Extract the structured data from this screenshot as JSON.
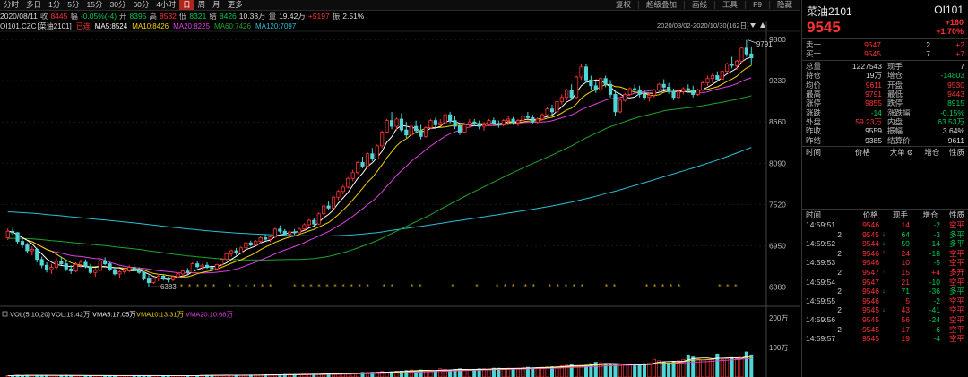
{
  "colors": {
    "up": "#ff3232",
    "down": "#00c853",
    "ma5": "#ffffff",
    "ma10": "#f5d400",
    "ma20": "#e040e0",
    "ma60": "#1fa32e",
    "ma120": "#2bbfd6",
    "vma5": "#ffffff",
    "vma10": "#f5d400",
    "vma20": "#e040e0"
  },
  "toolbar": {
    "periods": [
      "分时",
      "多日",
      "1分",
      "5分",
      "15分",
      "30分",
      "60分",
      "4小时",
      "日",
      "周",
      "月",
      "更多"
    ],
    "active": "日",
    "tools": [
      "复权",
      "超级叠加",
      "画线",
      "工具",
      "F9",
      "隐藏"
    ]
  },
  "quote": {
    "date": "2020/08/11",
    "close_label": "收",
    "close": "8445",
    "range_label": "幅",
    "range": "-0.05%(-4)",
    "open_label": "开",
    "open": "8395",
    "high_label": "高",
    "high": "8532",
    "low_label": "低",
    "low": "8321",
    "settle_label": "结",
    "settle": "8426",
    "amount": "10.38万",
    "vol_label": "量",
    "vol": "19.42万",
    "oi_chg": "+5197",
    "amp_label": "振",
    "amp": "2.51%"
  },
  "ma": {
    "symbol": "OI101.CZC",
    "name": "[菜油2101]",
    "rights": "已连",
    "ma5": "MA5:8524",
    "ma10": "MA10:8426",
    "ma20": "MA20:8225",
    "ma60": "MA60:7426",
    "ma120": "MA120:7097"
  },
  "range_label": "2020/03/02-2020/10/30(162日)",
  "price_axis": [
    "9800",
    "9230",
    "8660",
    "8090",
    "7520",
    "6950",
    "6380"
  ],
  "max_label": "9791",
  "min_label": "6383",
  "vol_legend": {
    "title": "VOL(5,10,20)",
    "vol": "VOL:19.42万",
    "vma5": "VMA5:17.05万",
    "vma10": "VMA10:13.31万",
    "vma20": "VMA20:10.68万"
  },
  "vol_axis": [
    "200万",
    "100万"
  ],
  "panel": {
    "name": "菜油2101",
    "code": "OI101",
    "price": "9545",
    "chg": "+160",
    "chg_pct": "+1.70%",
    "orderbook": [
      {
        "label": "卖一",
        "price": "9547",
        "vol": "2",
        "chg": "+2"
      },
      {
        "label": "买一",
        "price": "9545",
        "vol": "7",
        "chg": "+7"
      }
    ],
    "stats": [
      {
        "k1": "总量",
        "v1": "1227543",
        "c1": "w",
        "k2": "现手",
        "v2": "7",
        "c2": "w"
      },
      {
        "k1": "持仓",
        "v1": "19万",
        "c1": "w",
        "k2": "增仓",
        "v2": "-14803",
        "c2": "g"
      },
      {
        "k1": "均价",
        "v1": "9611",
        "c1": "r",
        "k2": "开盘",
        "v2": "9530",
        "c2": "r"
      },
      {
        "k1": "最高",
        "v1": "9791",
        "c1": "r",
        "k2": "最低",
        "v2": "9443",
        "c2": "r"
      },
      {
        "k1": "涨停",
        "v1": "9855",
        "c1": "r",
        "k2": "跌停",
        "v2": "8915",
        "c2": "g"
      },
      {
        "k1": "涨跌",
        "v1": "-14",
        "c1": "g",
        "k2": "涨跌幅",
        "v2": "-0.15%",
        "c2": "g"
      },
      {
        "k1": "外盘",
        "v1": "59.23万",
        "c1": "r",
        "k2": "内盘",
        "v2": "63.53万",
        "c2": "g"
      },
      {
        "k1": "昨收",
        "v1": "9559",
        "c1": "w",
        "k2": "振幅",
        "v2": "3.64%",
        "c2": "w"
      },
      {
        "k1": "昨结",
        "v1": "9385",
        "c1": "w",
        "k2": "结算价",
        "v2": "9611",
        "c2": "w"
      }
    ],
    "trade_head": [
      "时间",
      "价格",
      "大单",
      "增仓",
      "性质"
    ],
    "tick_head": [
      "时间",
      "价格",
      "现手",
      "增仓",
      "性质"
    ],
    "ticks": [
      {
        "t": "14:59:51",
        "p": "9546",
        "pc": "r",
        "a": "",
        "v": "14",
        "vc": "r",
        "oi": "-2",
        "n": "空平",
        "nc": "r"
      },
      {
        "t": "2",
        "p": "9545",
        "pc": "r",
        "a": "↓",
        "v": "64",
        "vc": "g",
        "oi": "-3",
        "n": "多平",
        "nc": "g"
      },
      {
        "t": "14:59:52",
        "p": "9544",
        "pc": "r",
        "a": "↓",
        "v": "59",
        "vc": "g",
        "oi": "-14",
        "n": "多平",
        "nc": "g"
      },
      {
        "t": "2",
        "p": "9546",
        "pc": "r",
        "a": "↑",
        "v": "24",
        "vc": "r",
        "oi": "-18",
        "n": "空平",
        "nc": "r"
      },
      {
        "t": "14:59:53",
        "p": "9546",
        "pc": "r",
        "a": "",
        "v": "10",
        "vc": "r",
        "oi": "-5",
        "n": "空平",
        "nc": "r"
      },
      {
        "t": "2",
        "p": "9547",
        "pc": "r",
        "a": "↑",
        "v": "15",
        "vc": "r",
        "oi": "+4",
        "n": "多开",
        "nc": "r"
      },
      {
        "t": "14:59:54",
        "p": "9547",
        "pc": "r",
        "a": "",
        "v": "21",
        "vc": "r",
        "oi": "-10",
        "n": "空平",
        "nc": "r"
      },
      {
        "t": "2",
        "p": "9546",
        "pc": "r",
        "a": "↓",
        "v": "71",
        "vc": "g",
        "oi": "-36",
        "n": "多平",
        "nc": "g"
      },
      {
        "t": "14:59:55",
        "p": "9546",
        "pc": "r",
        "a": "",
        "v": "5",
        "vc": "r",
        "oi": "-2",
        "n": "空平",
        "nc": "r"
      },
      {
        "t": "2",
        "p": "9545",
        "pc": "r",
        "a": "↓",
        "v": "43",
        "vc": "r",
        "oi": "-41",
        "n": "空平",
        "nc": "r"
      },
      {
        "t": "14:59:56",
        "p": "9545",
        "pc": "r",
        "a": "",
        "v": "56",
        "vc": "r",
        "oi": "-24",
        "n": "空平",
        "nc": "r"
      },
      {
        "t": "2",
        "p": "9545",
        "pc": "r",
        "a": "",
        "v": "17",
        "vc": "r",
        "oi": "-6",
        "n": "空平",
        "nc": "r"
      },
      {
        "t": "14:59:57",
        "p": "9545",
        "pc": "r",
        "a": "",
        "v": "19",
        "vc": "r",
        "oi": "-4",
        "n": "空平",
        "nc": "r"
      }
    ]
  },
  "chart_data": {
    "type": "candlestick",
    "title": "菜油2101 日K",
    "y_range": [
      6200,
      9900
    ],
    "vol_range_wan": [
      0,
      200
    ],
    "ticks": [
      "9800",
      "9230",
      "8660",
      "8090",
      "7520",
      "6950",
      "6380"
    ],
    "ohlc": [
      [
        7060,
        7190,
        7030,
        7150
      ],
      [
        7150,
        7200,
        7100,
        7130
      ],
      [
        7130,
        7140,
        6980,
        7010
      ],
      [
        7010,
        7060,
        6920,
        6960
      ],
      [
        6960,
        6990,
        6850,
        6880
      ],
      [
        6880,
        6940,
        6820,
        6900
      ],
      [
        6900,
        6920,
        6720,
        6760
      ],
      [
        6760,
        6800,
        6640,
        6680
      ],
      [
        6680,
        6720,
        6580,
        6620
      ],
      [
        6620,
        6700,
        6560,
        6650
      ],
      [
        6650,
        6780,
        6620,
        6740
      ],
      [
        6740,
        6800,
        6680,
        6700
      ],
      [
        6700,
        6760,
        6600,
        6630
      ],
      [
        6630,
        6680,
        6560,
        6600
      ],
      [
        6600,
        6720,
        6580,
        6690
      ],
      [
        6690,
        6760,
        6650,
        6720
      ],
      [
        6720,
        6760,
        6640,
        6660
      ],
      [
        6660,
        6700,
        6560,
        6580
      ],
      [
        6580,
        6640,
        6520,
        6610
      ],
      [
        6610,
        6760,
        6600,
        6740
      ],
      [
        6740,
        6790,
        6680,
        6700
      ],
      [
        6700,
        6720,
        6600,
        6620
      ],
      [
        6620,
        6660,
        6540,
        6560
      ],
      [
        6560,
        6620,
        6500,
        6590
      ],
      [
        6590,
        6640,
        6560,
        6610
      ],
      [
        6610,
        6680,
        6580,
        6650
      ],
      [
        6650,
        6690,
        6600,
        6620
      ],
      [
        6620,
        6650,
        6560,
        6580
      ],
      [
        6580,
        6600,
        6470,
        6490
      ],
      [
        6490,
        6540,
        6383,
        6440
      ],
      [
        6440,
        6520,
        6420,
        6500
      ],
      [
        6500,
        6560,
        6460,
        6530
      ],
      [
        6530,
        6560,
        6470,
        6490
      ],
      [
        6490,
        6520,
        6440,
        6480
      ],
      [
        6480,
        6540,
        6460,
        6520
      ],
      [
        6520,
        6580,
        6500,
        6560
      ],
      [
        6560,
        6620,
        6530,
        6600
      ],
      [
        6600,
        6640,
        6560,
        6580
      ],
      [
        6580,
        6720,
        6570,
        6700
      ],
      [
        6700,
        6740,
        6640,
        6660
      ],
      [
        6660,
        6700,
        6620,
        6680
      ],
      [
        6680,
        6720,
        6630,
        6650
      ],
      [
        6650,
        6680,
        6600,
        6630
      ],
      [
        6630,
        6700,
        6610,
        6690
      ],
      [
        6690,
        6780,
        6680,
        6760
      ],
      [
        6760,
        6860,
        6740,
        6840
      ],
      [
        6840,
        6900,
        6800,
        6880
      ],
      [
        6880,
        6920,
        6820,
        6850
      ],
      [
        6850,
        6940,
        6840,
        6920
      ],
      [
        6920,
        7010,
        6900,
        6990
      ],
      [
        6990,
        7020,
        6940,
        6960
      ],
      [
        6960,
        7030,
        6950,
        7010
      ],
      [
        7010,
        7080,
        6980,
        7060
      ],
      [
        7060,
        7110,
        7020,
        7040
      ],
      [
        7040,
        7090,
        7000,
        7070
      ],
      [
        7070,
        7200,
        7060,
        7180
      ],
      [
        7180,
        7230,
        7120,
        7150
      ],
      [
        7150,
        7180,
        7090,
        7110
      ],
      [
        7110,
        7160,
        7080,
        7140
      ],
      [
        7140,
        7180,
        7100,
        7130
      ],
      [
        7130,
        7200,
        7110,
        7180
      ],
      [
        7180,
        7260,
        7160,
        7240
      ],
      [
        7240,
        7320,
        7220,
        7300
      ],
      [
        7300,
        7340,
        7220,
        7250
      ],
      [
        7250,
        7410,
        7240,
        7390
      ],
      [
        7390,
        7520,
        7380,
        7500
      ],
      [
        7500,
        7560,
        7440,
        7470
      ],
      [
        7470,
        7640,
        7460,
        7620
      ],
      [
        7620,
        7720,
        7580,
        7700
      ],
      [
        7700,
        7790,
        7660,
        7760
      ],
      [
        7760,
        7900,
        7740,
        7880
      ],
      [
        7880,
        8000,
        7840,
        7960
      ],
      [
        7960,
        8120,
        7940,
        8100
      ],
      [
        8100,
        8180,
        8020,
        8050
      ],
      [
        8050,
        8240,
        8030,
        8220
      ],
      [
        8220,
        8300,
        8120,
        8150
      ],
      [
        8150,
        8350,
        8140,
        8330
      ],
      [
        8330,
        8540,
        8300,
        8520
      ],
      [
        8520,
        8700,
        8500,
        8680
      ],
      [
        8680,
        8800,
        8560,
        8600
      ],
      [
        8600,
        8720,
        8540,
        8700
      ],
      [
        8700,
        8780,
        8520,
        8550
      ],
      [
        8550,
        8660,
        8440,
        8480
      ],
      [
        8480,
        8620,
        8460,
        8600
      ],
      [
        8600,
        8680,
        8500,
        8540
      ],
      [
        8540,
        8620,
        8420,
        8460
      ],
      [
        8460,
        8600,
        8440,
        8580
      ],
      [
        8580,
        8700,
        8560,
        8680
      ],
      [
        8680,
        8720,
        8580,
        8620
      ],
      [
        8620,
        8700,
        8600,
        8650
      ],
      [
        8650,
        8780,
        8630,
        8760
      ],
      [
        8760,
        8800,
        8640,
        8680
      ],
      [
        8680,
        8740,
        8560,
        8600
      ],
      [
        8600,
        8640,
        8480,
        8520
      ],
      [
        8520,
        8640,
        8500,
        8620
      ],
      [
        8620,
        8700,
        8580,
        8660
      ],
      [
        8660,
        8700,
        8600,
        8640
      ],
      [
        8640,
        8680,
        8560,
        8600
      ],
      [
        8600,
        8660,
        8540,
        8620
      ],
      [
        8620,
        8700,
        8600,
        8680
      ],
      [
        8680,
        8720,
        8620,
        8640
      ],
      [
        8640,
        8680,
        8580,
        8620
      ],
      [
        8620,
        8700,
        8600,
        8680
      ],
      [
        8680,
        8740,
        8640,
        8700
      ],
      [
        8700,
        8730,
        8620,
        8650
      ],
      [
        8650,
        8700,
        8600,
        8680
      ],
      [
        8680,
        8760,
        8660,
        8740
      ],
      [
        8740,
        8800,
        8700,
        8720
      ],
      [
        8720,
        8760,
        8640,
        8660
      ],
      [
        8660,
        8720,
        8640,
        8700
      ],
      [
        8700,
        8780,
        8680,
        8760
      ],
      [
        8760,
        8860,
        8740,
        8840
      ],
      [
        8840,
        8900,
        8760,
        8800
      ],
      [
        8800,
        8960,
        8780,
        8940
      ],
      [
        8940,
        9040,
        8900,
        9000
      ],
      [
        9000,
        9120,
        8960,
        9100
      ],
      [
        9100,
        9180,
        8960,
        9000
      ],
      [
        9000,
        9300,
        8980,
        9280
      ],
      [
        9280,
        9460,
        9240,
        9420
      ],
      [
        9420,
        9460,
        9200,
        9240
      ],
      [
        9240,
        9300,
        9100,
        9160
      ],
      [
        9160,
        9220,
        9060,
        9100
      ],
      [
        9100,
        9280,
        9080,
        9260
      ],
      [
        9260,
        9300,
        9140,
        9180
      ],
      [
        9180,
        9240,
        9000,
        9040
      ],
      [
        9040,
        9100,
        8740,
        8800
      ],
      [
        8800,
        8980,
        8780,
        8960
      ],
      [
        8960,
        9060,
        8940,
        9040
      ],
      [
        9040,
        9140,
        9020,
        9120
      ],
      [
        9120,
        9180,
        9060,
        9100
      ],
      [
        9100,
        9160,
        9000,
        9040
      ],
      [
        9040,
        9100,
        8960,
        9000
      ],
      [
        9000,
        9060,
        8940,
        9030
      ],
      [
        9030,
        9120,
        9000,
        9100
      ],
      [
        9100,
        9200,
        9080,
        9180
      ],
      [
        9180,
        9250,
        9100,
        9140
      ],
      [
        9140,
        9200,
        9050,
        9080
      ],
      [
        9080,
        9120,
        8960,
        9000
      ],
      [
        9000,
        9100,
        8980,
        9080
      ],
      [
        9080,
        9140,
        9040,
        9120
      ],
      [
        9120,
        9180,
        9060,
        9100
      ],
      [
        9100,
        9160,
        9000,
        9040
      ],
      [
        9040,
        9120,
        9020,
        9100
      ],
      [
        9100,
        9220,
        9080,
        9200
      ],
      [
        9200,
        9300,
        9160,
        9260
      ],
      [
        9260,
        9340,
        9200,
        9300
      ],
      [
        9300,
        9360,
        9220,
        9250
      ],
      [
        9250,
        9380,
        9240,
        9360
      ],
      [
        9360,
        9480,
        9340,
        9460
      ],
      [
        9460,
        9560,
        9400,
        9440
      ],
      [
        9440,
        9520,
        9380,
        9500
      ],
      [
        9500,
        9700,
        9480,
        9680
      ],
      [
        9680,
        9791,
        9560,
        9600
      ],
      [
        9600,
        9700,
        9443,
        9545
      ]
    ],
    "vol_wan": [
      5,
      5,
      6,
      5,
      6,
      5,
      6,
      5,
      6,
      5,
      5,
      5,
      6,
      5,
      5,
      5,
      5,
      5,
      5,
      5,
      5,
      5,
      5,
      5,
      5,
      5,
      5,
      5,
      5,
      5,
      5,
      5,
      5,
      5,
      5,
      5,
      5,
      5,
      5,
      5,
      6,
      6,
      6,
      6,
      6,
      7,
      6,
      6,
      6,
      7,
      7,
      7,
      7,
      8,
      8,
      8,
      8,
      9,
      9,
      9,
      9,
      10,
      10,
      10,
      10,
      11,
      11,
      12,
      12,
      13,
      13,
      14,
      14,
      16,
      15,
      16,
      17,
      19,
      17,
      18,
      20,
      20,
      22,
      24,
      22,
      24,
      22,
      20,
      22,
      28,
      26,
      24,
      26,
      28,
      25,
      25,
      26,
      28,
      28,
      27,
      30,
      30,
      29,
      30,
      28,
      30,
      32,
      33,
      31,
      32,
      33,
      34,
      35,
      35,
      38,
      40,
      42,
      38,
      36,
      40,
      45,
      50,
      48,
      46,
      40,
      42,
      45,
      42,
      40,
      38,
      42,
      45,
      48,
      60,
      55,
      50,
      48,
      52,
      55,
      60,
      75,
      68,
      62,
      58,
      60,
      62,
      78,
      60,
      62,
      66,
      62,
      70,
      85,
      75,
      80,
      122
    ]
  }
}
